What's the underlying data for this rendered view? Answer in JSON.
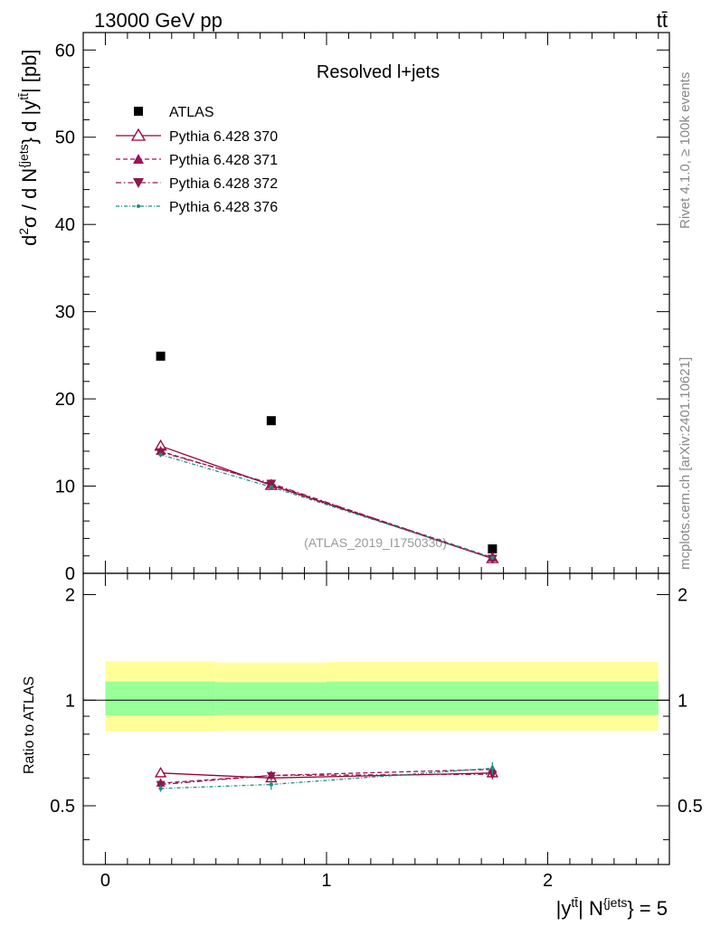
{
  "header": {
    "left": "13000 GeV pp",
    "right": "tt̄"
  },
  "side_labels": {
    "rivet": "Rivet 4.1.0, ≥ 100k events",
    "mcplots": "mcplots.cern.ch [arXiv:2401.10621]"
  },
  "colors": {
    "atlas": "#000000",
    "p370": "#990033",
    "p371": "#a0105a",
    "p372": "#8b1a4a",
    "p376": "#1a9080",
    "band_inner": "#99ff99",
    "band_outer": "#ffff99"
  },
  "chart_data": [
    {
      "type": "scatter",
      "panel": "main",
      "title": "Resolved l+jets",
      "watermark": "(ATLAS_2019_I1750330)",
      "ylabel": {
        "main": "d",
        "sup1": "2",
        "sym": "σ / d N",
        "sup2": "{jets",
        "mid": "} d |y",
        "sup3": "tt̄",
        "end": "| [pb]"
      },
      "xlim": [
        -0.1,
        2.55
      ],
      "ylim": [
        0,
        62
      ],
      "yticks": [
        0,
        10,
        20,
        30,
        40,
        50,
        60
      ],
      "ytick_labels": [
        "0",
        "10",
        "20",
        "30",
        "40",
        "50",
        "60"
      ],
      "x": [
        0.25,
        0.75,
        1.75
      ],
      "series": [
        {
          "name": "ATLAS",
          "marker": "square",
          "style": "none",
          "values": [
            24.9,
            17.5,
            2.8
          ]
        },
        {
          "name": "Pythia 6.428 370",
          "marker": "tri-up-open",
          "style": "solid",
          "values": [
            14.6,
            10.1,
            1.7
          ]
        },
        {
          "name": "Pythia 6.428 371",
          "marker": "tri-up",
          "style": "dashed",
          "values": [
            14.0,
            10.2,
            1.8
          ]
        },
        {
          "name": "Pythia 6.428 372",
          "marker": "tri-down",
          "style": "dashdot",
          "values": [
            13.9,
            10.3,
            1.7
          ]
        },
        {
          "name": "Pythia 6.428 376",
          "marker": "dot",
          "style": "dotdash",
          "values": [
            13.6,
            9.9,
            1.8
          ]
        }
      ]
    },
    {
      "type": "line",
      "panel": "ratio",
      "ylabel": "Ratio to ATLAS",
      "xlabel": {
        "a": "|y",
        "sup1": "tt̄",
        "b": "| N",
        "sup2": "{jets",
        "c": "} = 5"
      },
      "xlim": [
        -0.1,
        2.55
      ],
      "ylim": [
        0.34,
        2.3
      ],
      "xticks": [
        0,
        1,
        2
      ],
      "xtick_labels": [
        "0",
        "1",
        "2"
      ],
      "yticks": [
        0.5,
        1,
        2
      ],
      "ytick_labels": [
        "0.5",
        "1",
        "2"
      ],
      "x": [
        0.25,
        0.75,
        1.75
      ],
      "bands": [
        {
          "name": "outer",
          "x": [
            0,
            0.5,
            1.0,
            2.5
          ],
          "lo": [
            0.815,
            0.818,
            0.818,
            0.818
          ],
          "hi": [
            1.29,
            1.28,
            1.285,
            1.285
          ]
        },
        {
          "name": "inner",
          "x": [
            0,
            0.5,
            1.0,
            2.5
          ],
          "lo": [
            0.905,
            0.908,
            0.908,
            0.908
          ],
          "hi": [
            1.13,
            1.125,
            1.13,
            1.13
          ]
        }
      ],
      "series": [
        {
          "name": "Pythia 6.428 370",
          "values": [
            0.62,
            0.6,
            0.62
          ],
          "err": [
            0.012,
            0.012,
            0.02
          ]
        },
        {
          "name": "Pythia 6.428 371",
          "values": [
            0.58,
            0.61,
            0.635
          ],
          "err": [
            0.012,
            0.015,
            0.02
          ]
        },
        {
          "name": "Pythia 6.428 372",
          "values": [
            0.575,
            0.61,
            0.615
          ],
          "err": [
            0.012,
            0.015,
            0.02
          ]
        },
        {
          "name": "Pythia 6.428 376",
          "values": [
            0.56,
            0.575,
            0.64
          ],
          "err": [
            0.012,
            0.02,
            0.025
          ]
        }
      ]
    }
  ]
}
